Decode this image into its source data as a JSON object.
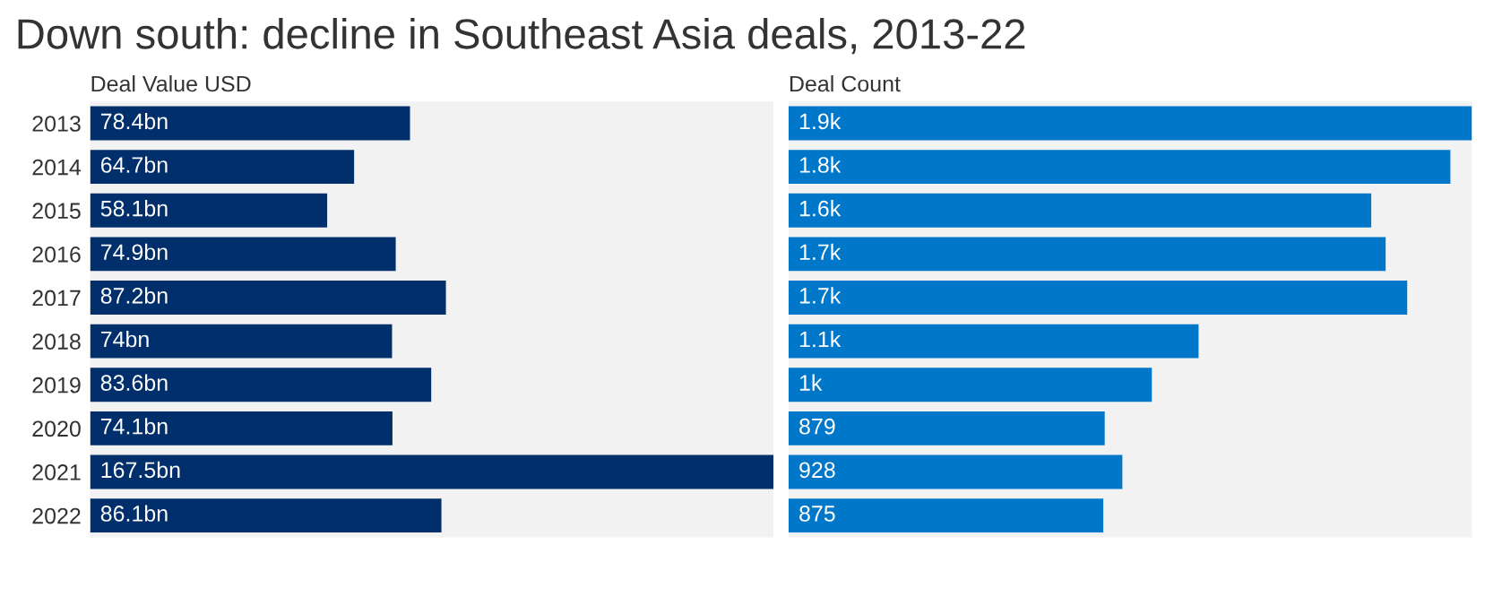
{
  "chart_data": [
    {
      "type": "bar",
      "orientation": "horizontal",
      "title": "Down south: decline in Southeast Asia deals, 2013-22",
      "xlabel": "Deal Value USD",
      "categories": [
        "2013",
        "2014",
        "2015",
        "2016",
        "2017",
        "2018",
        "2019",
        "2020",
        "2021",
        "2022"
      ],
      "values": [
        78.4,
        64.7,
        58.1,
        74.9,
        87.2,
        74,
        83.6,
        74.1,
        167.5,
        86.1
      ],
      "value_labels": [
        "78.4bn",
        "64.7bn",
        "58.1bn",
        "74.9bn",
        "87.2bn",
        "74bn",
        "83.6bn",
        "74.1bn",
        "167.5bn",
        "86.1bn"
      ],
      "color": "#002f6c",
      "xlim": [
        0,
        167.5
      ],
      "tick_labels": "y",
      "grid": false,
      "legend": false
    },
    {
      "type": "bar",
      "orientation": "horizontal",
      "xlabel": "Deal Count",
      "categories": [
        "2013",
        "2014",
        "2015",
        "2016",
        "2017",
        "2018",
        "2019",
        "2020",
        "2021",
        "2022"
      ],
      "values": [
        1900,
        1840,
        1620,
        1660,
        1720,
        1140,
        1010,
        879,
        928,
        875
      ],
      "value_labels": [
        "1.9k",
        "1.8k",
        "1.6k",
        "1.7k",
        "1.7k",
        "1.1k",
        "1k",
        "879",
        "928",
        "875"
      ],
      "color": "#0077c8",
      "xlim": [
        0,
        1900
      ],
      "tick_labels": false,
      "grid": false,
      "legend": false
    }
  ]
}
